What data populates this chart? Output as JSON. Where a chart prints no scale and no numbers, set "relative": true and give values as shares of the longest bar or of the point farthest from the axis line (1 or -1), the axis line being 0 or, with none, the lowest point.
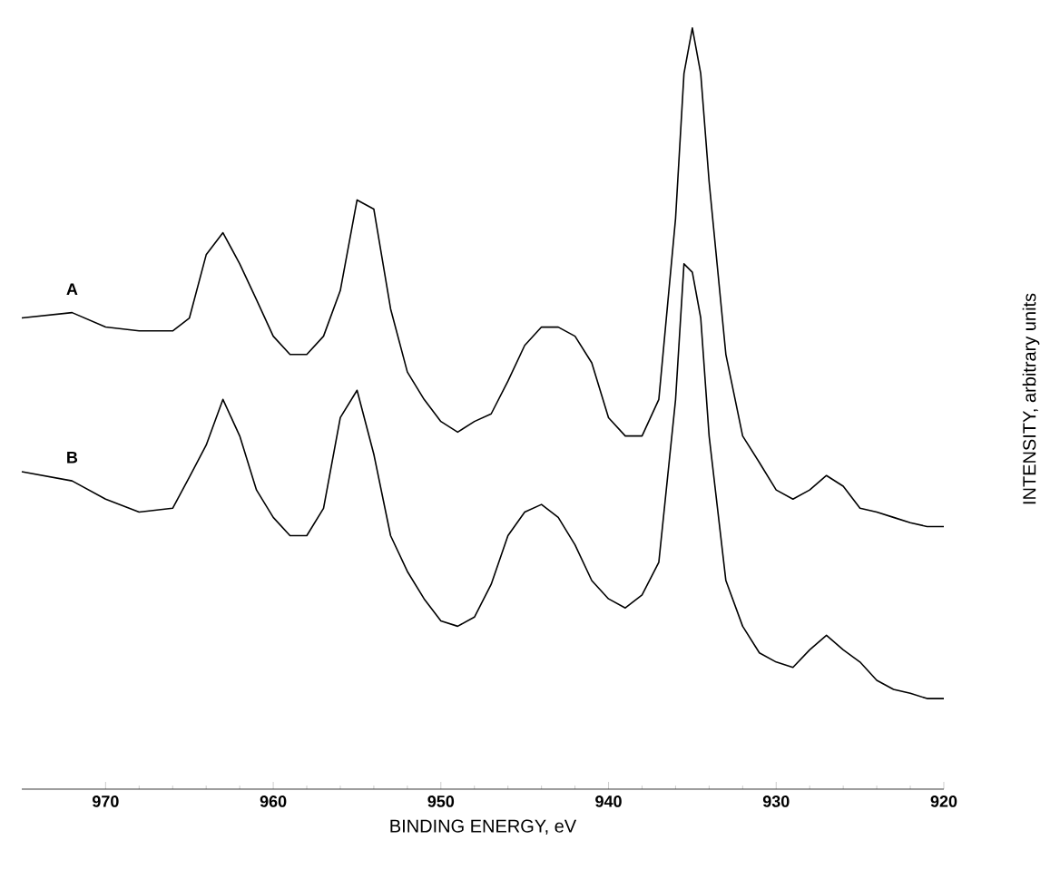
{
  "chart_data": {
    "type": "line",
    "xlabel": "BINDING ENERGY, eV",
    "ylabel": "INTENSITY, arbitrary units",
    "relative": true,
    "xlim": [
      975,
      920
    ],
    "xticks": [
      970,
      960,
      950,
      940,
      930,
      920
    ],
    "marker": "none",
    "line_style": "solid",
    "grid": false,
    "x": [
      975,
      972,
      970,
      968,
      966,
      965,
      964,
      963,
      962,
      961,
      960,
      959,
      958,
      957,
      956,
      955,
      954,
      953,
      952,
      951,
      950,
      949,
      948,
      947,
      946,
      945,
      944,
      943,
      942,
      941,
      940,
      939,
      938,
      937,
      936,
      935.5,
      935,
      934.5,
      934,
      933,
      932,
      931,
      930,
      929,
      928,
      927,
      926,
      925,
      924,
      923,
      922,
      921,
      920
    ],
    "series": [
      {
        "name": "A",
        "color": "#000000",
        "values": [
          0.619,
          0.626,
          0.607,
          0.602,
          0.602,
          0.619,
          0.702,
          0.731,
          0.69,
          0.643,
          0.595,
          0.571,
          0.571,
          0.595,
          0.655,
          0.774,
          0.762,
          0.631,
          0.548,
          0.512,
          0.483,
          0.469,
          0.483,
          0.493,
          0.536,
          0.583,
          0.607,
          0.607,
          0.595,
          0.56,
          0.488,
          0.464,
          0.464,
          0.512,
          0.75,
          0.94,
          1.0,
          0.94,
          0.798,
          0.571,
          0.464,
          0.429,
          0.393,
          0.381,
          0.393,
          0.412,
          0.398,
          0.369,
          0.364,
          0.357,
          0.35,
          0.345,
          0.345
        ]
      },
      {
        "name": "B",
        "color": "#000000",
        "values": [
          0.417,
          0.405,
          0.381,
          0.364,
          0.369,
          0.41,
          0.452,
          0.512,
          0.464,
          0.393,
          0.357,
          0.333,
          0.333,
          0.369,
          0.488,
          0.524,
          0.44,
          0.333,
          0.286,
          0.25,
          0.221,
          0.214,
          0.226,
          0.269,
          0.333,
          0.364,
          0.374,
          0.357,
          0.321,
          0.274,
          0.25,
          0.238,
          0.255,
          0.298,
          0.512,
          0.69,
          0.679,
          0.619,
          0.464,
          0.274,
          0.214,
          0.179,
          0.167,
          0.16,
          0.183,
          0.202,
          0.183,
          0.167,
          0.143,
          0.131,
          0.126,
          0.119,
          0.119
        ]
      }
    ]
  }
}
